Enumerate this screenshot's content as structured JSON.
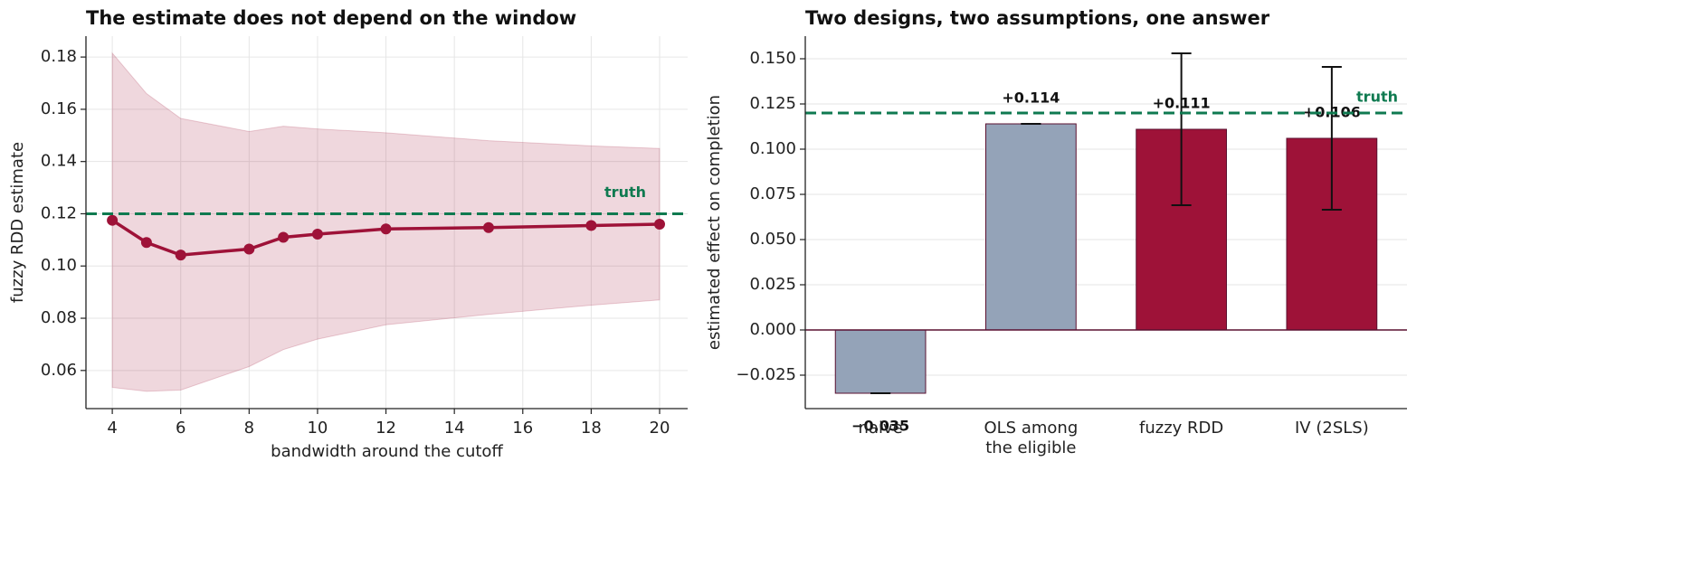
{
  "chart_data": [
    {
      "type": "line",
      "title": "The estimate does not depend on the window",
      "x_label": "bandwidth around the cutoff",
      "y_label": "fuzzy RDD estimate",
      "x": [
        4,
        5,
        6,
        8,
        9,
        10,
        12,
        15,
        18,
        20
      ],
      "series": [
        {
          "name": "fuzzy RDD estimate",
          "color": "#9e1238",
          "values": [
            0.1175,
            0.109,
            0.1042,
            0.1065,
            0.111,
            0.1122,
            0.1142,
            0.1147,
            0.1155,
            0.116
          ],
          "lower": [
            0.0535,
            0.052,
            0.0525,
            0.0615,
            0.068,
            0.072,
            0.0775,
            0.0815,
            0.085,
            0.087
          ],
          "upper": [
            0.1815,
            0.166,
            0.1565,
            0.1515,
            0.1535,
            0.1525,
            0.151,
            0.148,
            0.146,
            0.145
          ]
        }
      ],
      "reference": {
        "value": 0.12,
        "label": "truth",
        "color": "#0f7a50"
      },
      "xlim": [
        3.23,
        20.82
      ],
      "xticks": [
        4,
        6,
        8,
        10,
        12,
        14,
        16,
        18,
        20
      ],
      "ylim": [
        0.0454,
        0.188
      ],
      "yticks": [
        0.06,
        0.08,
        {
          "value": 0.1,
          "label": "0.10"
        },
        0.12,
        0.14,
        0.16,
        0.18
      ],
      "grid": true
    },
    {
      "type": "bar",
      "title": "Two designs, two assumptions, one answer",
      "y_label": "estimated effect on completion",
      "categories": [
        "naive",
        "OLS among\nthe eligible",
        "fuzzy RDD",
        "IV (2SLS)"
      ],
      "values": [
        -0.035,
        0.114,
        0.111,
        0.106
      ],
      "value_labels": [
        "−0.035",
        "+0.114",
        "+0.111",
        "+0.106"
      ],
      "errors": [
        0,
        0,
        0.042,
        0.0395
      ],
      "colors": [
        "#94a3b8",
        "#94a3b8",
        "#9e1238",
        "#9e1238"
      ],
      "reference": {
        "value": 0.12,
        "label": "truth",
        "color": "#0f7a50"
      },
      "ylim": [
        -0.0435,
        0.1625
      ],
      "yticks": [
        {
          "value": -0.025,
          "label": "−0.025"
        },
        {
          "value": 0,
          "label": "0.000"
        },
        {
          "value": 0.025,
          "label": "0.025"
        },
        {
          "value": 0.05,
          "label": "0.050"
        },
        {
          "value": 0.075,
          "label": "0.075"
        },
        {
          "value": 0.1,
          "label": "0.100"
        },
        {
          "value": 0.125,
          "label": "0.125"
        },
        {
          "value": 0.15,
          "label": "0.150"
        }
      ],
      "grid": true
    }
  ]
}
